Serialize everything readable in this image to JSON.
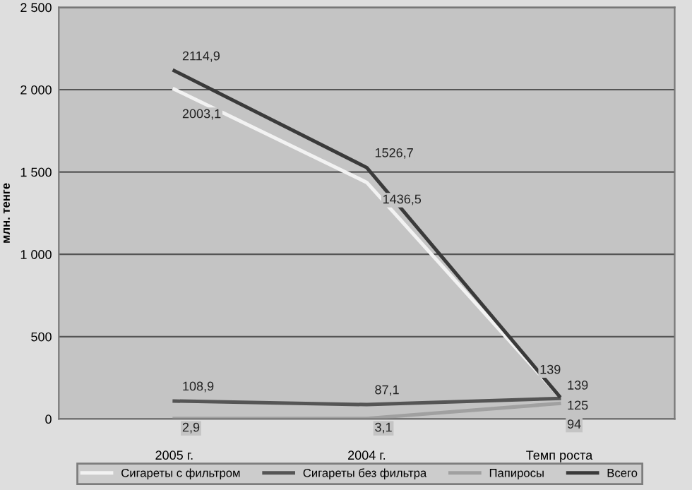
{
  "chart_data": {
    "type": "line",
    "ylabel": "млн. тенге",
    "categories": [
      "2005 г.",
      "2004 г.",
      "Темп роста"
    ],
    "series": [
      {
        "name": "Сигареты с фильтром",
        "color": "#f2f2f2",
        "values": [
          2003.1,
          1436.5,
          139
        ],
        "value_labels": [
          "2003,1",
          "1436,5",
          "139"
        ]
      },
      {
        "name": "Сигареты без фильтра",
        "color": "#555555",
        "values": [
          108.9,
          87.1,
          125
        ],
        "value_labels": [
          "108,9",
          "87,1",
          "125"
        ]
      },
      {
        "name": "Папиросы",
        "color": "#a0a0a0",
        "values": [
          2.9,
          3.1,
          94
        ],
        "value_labels": [
          "2,9",
          "3,1",
          "94"
        ]
      },
      {
        "name": "Всего",
        "color": "#3a3a3a",
        "values": [
          2114.9,
          1526.7,
          139
        ],
        "value_labels": [
          "2114,9",
          "1526,7",
          "139"
        ]
      }
    ],
    "ylim": [
      0,
      2500
    ],
    "yticks": [
      0,
      500,
      {
        "value": 1000,
        "label": "1 000"
      },
      {
        "value": 1500,
        "label": "1 500"
      },
      {
        "value": 2000,
        "label": "2 000"
      },
      {
        "value": 2500,
        "label": "2 500"
      }
    ],
    "grid": "y",
    "legend": "bottom",
    "marker": "none",
    "line_style": "solid"
  }
}
